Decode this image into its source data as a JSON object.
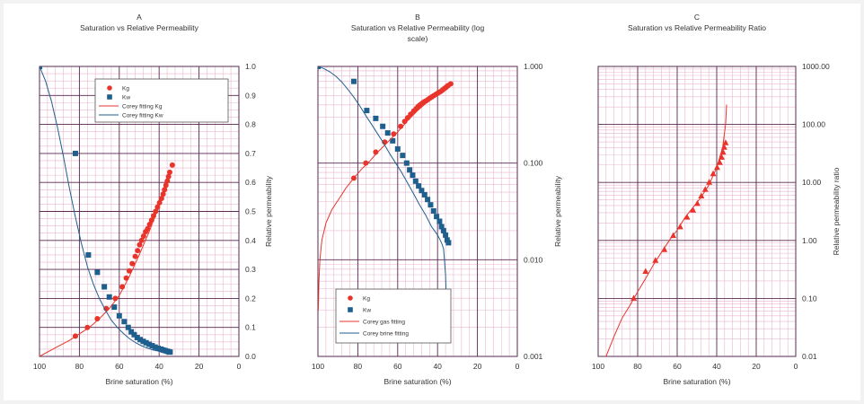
{
  "colors": {
    "gas": "#e8342a",
    "water": "#1f5f8e",
    "major_grid": "#5a2a52",
    "minor_grid": "#e7b8cf",
    "text": "#333333"
  },
  "chart_data": [
    {
      "id": "A",
      "type": "scatter",
      "title_letter": "A",
      "title": "Saturation vs Relative Permeability",
      "xlabel": "Brine saturation (%)",
      "ylabel": "Relative permeability",
      "xlim": [
        100,
        0
      ],
      "ylim": [
        0,
        1
      ],
      "y_scale": "linear",
      "x_ticks": [
        "100",
        "80",
        "60",
        "40",
        "20",
        "0"
      ],
      "y_ticks": [
        "0.0",
        "0.1",
        "0.2",
        "0.3",
        "0.4",
        "0.5",
        "0.6",
        "0.7",
        "0.8",
        "0.9",
        "1.0"
      ],
      "legend_position": "top-right",
      "legend": [
        {
          "label": "Kg",
          "marker": "circle"
        },
        {
          "label": "Kw",
          "marker": "square"
        },
        {
          "label": "Corey fitting Kg",
          "marker": "line-gas"
        },
        {
          "label": "Corey fitting Kw",
          "marker": "line-water"
        }
      ],
      "series": [
        {
          "name": "Kg",
          "kind": "points",
          "marker": "circle",
          "x": [
            82,
            76,
            71,
            66.5,
            62,
            58.5,
            56.5,
            55,
            53.5,
            52,
            50.8,
            49.8,
            48.8,
            47.8,
            46.8,
            45.8,
            44.8,
            43.8,
            42.8,
            41.8,
            40.8,
            39.8,
            38.8,
            38,
            37.3,
            36.6,
            35.9,
            35.3,
            34.7,
            33.4
          ],
          "y": [
            0.07,
            0.1,
            0.13,
            0.165,
            0.2,
            0.24,
            0.27,
            0.295,
            0.32,
            0.345,
            0.365,
            0.385,
            0.4,
            0.415,
            0.43,
            0.44,
            0.455,
            0.47,
            0.485,
            0.5,
            0.515,
            0.53,
            0.545,
            0.56,
            0.575,
            0.59,
            0.605,
            0.62,
            0.635,
            0.66
          ]
        },
        {
          "name": "Kw",
          "kind": "points",
          "marker": "square",
          "x": [
            100,
            82,
            75.5,
            71,
            67.5,
            65,
            62.5,
            60,
            57.5,
            55.5,
            54,
            52.5,
            51,
            49.5,
            48,
            46.5,
            45,
            43.5,
            42,
            40.5,
            39,
            38,
            37,
            36,
            35.2,
            34.5
          ],
          "y": [
            1.0,
            0.7,
            0.35,
            0.29,
            0.24,
            0.205,
            0.17,
            0.14,
            0.12,
            0.1,
            0.085,
            0.075,
            0.065,
            0.058,
            0.052,
            0.047,
            0.042,
            0.037,
            0.032,
            0.028,
            0.025,
            0.022,
            0.02,
            0.018,
            0.016,
            0.015
          ]
        },
        {
          "name": "Corey fitting Kg",
          "kind": "line",
          "color_role": "gas",
          "x": [
            100,
            92,
            85,
            80,
            75,
            70,
            65,
            60,
            55,
            50,
            45,
            40,
            36,
            34
          ],
          "y": [
            0,
            0.03,
            0.055,
            0.078,
            0.1,
            0.13,
            0.165,
            0.21,
            0.275,
            0.35,
            0.43,
            0.52,
            0.6,
            0.64
          ]
        },
        {
          "name": "Corey fitting Kw",
          "kind": "line",
          "color_role": "water",
          "x": [
            100,
            97,
            94,
            91,
            88,
            85,
            82,
            79,
            76,
            73,
            70,
            67,
            64,
            61,
            58,
            55,
            52,
            49,
            46,
            43,
            40,
            37,
            35
          ],
          "y": [
            1.0,
            0.95,
            0.88,
            0.79,
            0.69,
            0.58,
            0.48,
            0.39,
            0.31,
            0.25,
            0.2,
            0.16,
            0.125,
            0.1,
            0.08,
            0.062,
            0.048,
            0.037,
            0.029,
            0.022,
            0.018,
            0.015,
            0.014
          ]
        }
      ]
    },
    {
      "id": "B",
      "type": "scatter",
      "title_letter": "B",
      "title_lines": [
        "Saturation vs Relative Permeability (log",
        "scale)"
      ],
      "xlabel": "Brine saturation (%)",
      "ylabel": "Relative permeability",
      "xlim": [
        100,
        0
      ],
      "ylim": [
        0.001,
        1
      ],
      "y_scale": "log",
      "x_ticks": [
        "100",
        "80",
        "60",
        "40",
        "20",
        "0"
      ],
      "y_ticks": [
        "0.001",
        "0.010",
        "0.100",
        "1.000"
      ],
      "legend_position": "bottom-center",
      "legend": [
        {
          "label": "Kg",
          "marker": "circle"
        },
        {
          "label": "Kw",
          "marker": "square"
        },
        {
          "label": "Corey gas fitting",
          "marker": "line-gas"
        },
        {
          "label": "Corey brine fitting",
          "marker": "line-water"
        }
      ],
      "series": [
        {
          "name": "Kg",
          "kind": "points",
          "marker": "circle",
          "x": [
            82,
            76,
            71,
            66.5,
            62,
            58.5,
            56.5,
            55,
            53.5,
            52,
            50.8,
            49.8,
            48.8,
            47.8,
            46.8,
            45.8,
            44.8,
            43.8,
            42.8,
            41.8,
            40.8,
            39.8,
            38.8,
            38,
            37.3,
            36.6,
            35.9,
            35.3,
            34.7,
            33.4
          ],
          "y": [
            0.07,
            0.1,
            0.13,
            0.165,
            0.2,
            0.24,
            0.27,
            0.295,
            0.32,
            0.345,
            0.365,
            0.385,
            0.4,
            0.415,
            0.43,
            0.44,
            0.455,
            0.47,
            0.485,
            0.5,
            0.515,
            0.53,
            0.545,
            0.56,
            0.575,
            0.59,
            0.605,
            0.62,
            0.635,
            0.66
          ]
        },
        {
          "name": "Kw",
          "kind": "points",
          "marker": "square",
          "x": [
            100,
            82,
            75.5,
            71,
            67.5,
            65,
            62.5,
            60,
            57.5,
            55.5,
            54,
            52.5,
            51,
            49.5,
            48,
            46.5,
            45,
            43.5,
            42,
            40.5,
            39,
            38,
            37,
            36,
            35.2,
            34.5
          ],
          "y": [
            1.0,
            0.7,
            0.35,
            0.29,
            0.24,
            0.205,
            0.17,
            0.14,
            0.12,
            0.1,
            0.085,
            0.075,
            0.065,
            0.058,
            0.052,
            0.047,
            0.042,
            0.037,
            0.032,
            0.028,
            0.025,
            0.022,
            0.02,
            0.018,
            0.016,
            0.015
          ]
        },
        {
          "name": "Corey gas fitting",
          "kind": "line",
          "color_role": "gas",
          "x": [
            99.8,
            99.5,
            99,
            98,
            96,
            93,
            90,
            86,
            82,
            78,
            74,
            70,
            65,
            60,
            55,
            50,
            45,
            40,
            36,
            34
          ],
          "y": [
            0.003,
            0.006,
            0.01,
            0.016,
            0.024,
            0.033,
            0.041,
            0.055,
            0.07,
            0.087,
            0.105,
            0.13,
            0.165,
            0.21,
            0.275,
            0.35,
            0.43,
            0.52,
            0.6,
            0.64
          ]
        },
        {
          "name": "Corey brine fitting",
          "kind": "line",
          "color_role": "water",
          "x": [
            100,
            97,
            94,
            91,
            88,
            85,
            82,
            79,
            76,
            73,
            70,
            67,
            64,
            61,
            58,
            55,
            52,
            49,
            46,
            43,
            40,
            38,
            37,
            36,
            35.5
          ],
          "y": [
            1.0,
            0.95,
            0.88,
            0.79,
            0.69,
            0.58,
            0.48,
            0.39,
            0.31,
            0.25,
            0.2,
            0.16,
            0.125,
            0.1,
            0.08,
            0.062,
            0.048,
            0.037,
            0.029,
            0.022,
            0.018,
            0.015,
            0.013,
            0.007,
            0.003
          ]
        }
      ]
    },
    {
      "id": "C",
      "type": "scatter",
      "title_letter": "C",
      "title": "Saturation vs Relative Permeability Ratio",
      "xlabel": "Brine saturation (%)",
      "ylabel": "Relative permeability ratio",
      "xlim": [
        100,
        0
      ],
      "ylim": [
        0.01,
        1000
      ],
      "y_scale": "log",
      "x_ticks": [
        "100",
        "80",
        "60",
        "40",
        "20",
        "0"
      ],
      "y_ticks": [
        "0.01",
        "0.10",
        "1.00",
        "10.00",
        "100.00",
        "1000.00"
      ],
      "series": [
        {
          "name": "ratio",
          "kind": "points",
          "marker": "triangle",
          "x": [
            82,
            76,
            71,
            66.5,
            62,
            58.5,
            55,
            52,
            49.8,
            47.8,
            45.8,
            43.8,
            41.8,
            39.8,
            38.5,
            37.5,
            36.8,
            36.2,
            35.5
          ],
          "y": [
            0.1,
            0.29,
            0.45,
            0.69,
            1.2,
            1.7,
            2.5,
            3.3,
            4.3,
            5.8,
            7.5,
            10,
            14,
            18,
            22,
            27,
            33,
            40,
            48
          ]
        },
        {
          "name": "fit",
          "kind": "line",
          "color_role": "gas",
          "x": [
            96,
            92,
            88,
            84,
            80,
            76,
            72,
            68,
            64,
            60,
            56,
            52,
            48,
            44,
            40,
            37,
            35.5,
            35
          ],
          "y": [
            0.008,
            0.022,
            0.045,
            0.075,
            0.13,
            0.22,
            0.38,
            0.62,
            1.0,
            1.5,
            2.5,
            3.7,
            5.5,
            9,
            18,
            40,
            100,
            220
          ]
        }
      ]
    }
  ]
}
